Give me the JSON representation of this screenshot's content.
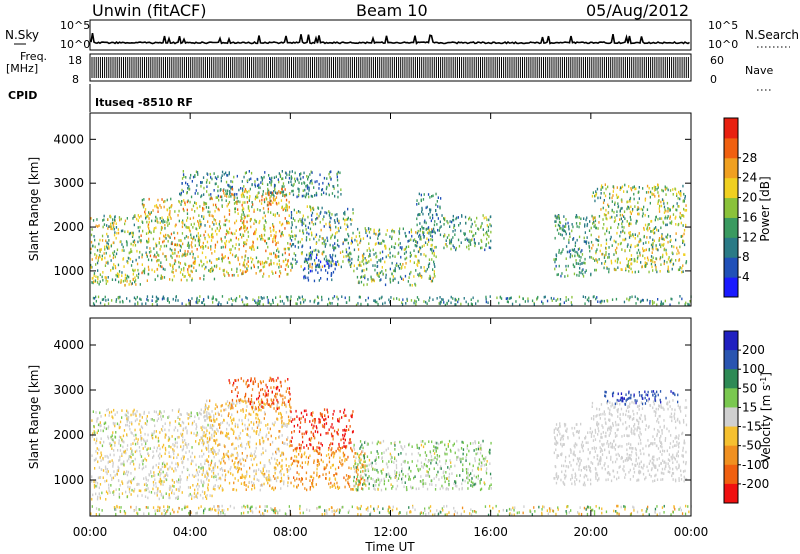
{
  "header": {
    "station": "Unwin (fitACF)",
    "beam": "Beam 10",
    "date": "05/Aug/2012"
  },
  "status_panels": {
    "nsky_label": "N.Sky",
    "nsearch_label": "N.Search",
    "nsky_ticks": [
      "10^5",
      "10^0"
    ],
    "nsearch_ticks": [
      "10^5",
      "10^0"
    ],
    "freq_label_1": "Freq.",
    "freq_label_2": "[MHz]",
    "freq_ticks": [
      "18",
      "8"
    ],
    "nave_label": "Nave",
    "nave_ticks": [
      "60",
      "0"
    ],
    "cpid_label": "CPID",
    "cpid_text": "Ituseq -8510 RF"
  },
  "colors": {
    "power": [
      "#1a1aff",
      "#2050b8",
      "#2a7a86",
      "#3a9a60",
      "#8ac23a",
      "#f0d020",
      "#f0a020",
      "#f06010",
      "#e82010"
    ],
    "velocity": [
      "#2020c0",
      "#2a55b0",
      "#2e8a55",
      "#7ac850",
      "#d0d0d0",
      "#f5c030",
      "#f09020",
      "#f06010",
      "#f01010"
    ]
  },
  "chart_data": [
    {
      "type": "heatmap",
      "quantity": "power",
      "xlabel": "",
      "ylabel": "Slant Range [km]",
      "xlim": [
        0,
        24
      ],
      "ylim": [
        200,
        4600
      ],
      "yticks": [
        "1000",
        "2000",
        "3000",
        "4000"
      ],
      "colorbar_label": "Power [dB]",
      "colorbar_ticks": [
        "4",
        "8",
        "12",
        "16",
        "20",
        "24",
        "28"
      ],
      "colorbar_range": [
        0,
        32
      ],
      "regions": [
        {
          "t": [
            0.0,
            2.0
          ],
          "r": [
            700,
            2300
          ],
          "v": [
            8,
            24
          ]
        },
        {
          "t": [
            2.0,
            5.0
          ],
          "r": [
            800,
            2700
          ],
          "v": [
            10,
            26
          ]
        },
        {
          "t": [
            3.5,
            10.0
          ],
          "r": [
            2700,
            3300
          ],
          "v": [
            4,
            16
          ]
        },
        {
          "t": [
            5.0,
            8.0
          ],
          "r": [
            900,
            2900
          ],
          "v": [
            12,
            28
          ]
        },
        {
          "t": [
            8.0,
            10.5
          ],
          "r": [
            1100,
            2500
          ],
          "v": [
            4,
            22
          ]
        },
        {
          "t": [
            8.5,
            9.8
          ],
          "r": [
            800,
            1400
          ],
          "v": [
            2,
            10
          ]
        },
        {
          "t": [
            10.5,
            13.8
          ],
          "r": [
            700,
            2000
          ],
          "v": [
            6,
            22
          ]
        },
        {
          "t": [
            13.0,
            14.0
          ],
          "r": [
            1800,
            2800
          ],
          "v": [
            6,
            14
          ]
        },
        {
          "t": [
            14.0,
            16.0
          ],
          "r": [
            1500,
            2300
          ],
          "v": [
            6,
            18
          ]
        },
        {
          "t": [
            18.5,
            20.0
          ],
          "r": [
            900,
            2300
          ],
          "v": [
            6,
            16
          ]
        },
        {
          "t": [
            20.0,
            23.8
          ],
          "r": [
            1000,
            3000
          ],
          "v": [
            8,
            24
          ]
        },
        {
          "t": [
            0.0,
            24.0
          ],
          "r": [
            250,
            450
          ],
          "v": [
            6,
            16
          ]
        }
      ]
    },
    {
      "type": "heatmap",
      "quantity": "velocity",
      "xlabel": "Time UT",
      "ylabel": "Slant Range [km]",
      "xlim": [
        0,
        24
      ],
      "ylim": [
        200,
        4600
      ],
      "xticks": [
        "00:00",
        "04:00",
        "08:00",
        "12:00",
        "16:00",
        "20:00",
        "00:00"
      ],
      "yticks": [
        "1000",
        "2000",
        "3000",
        "4000"
      ],
      "colorbar_label": "Velocity [m s^-1]",
      "colorbar_ticks": [
        "200",
        "100",
        "50",
        "15",
        "-15",
        "-50",
        "-100",
        "-200"
      ],
      "regions": [
        {
          "t": [
            0.0,
            5.0
          ],
          "r": [
            600,
            2600
          ],
          "v": [
            -30,
            20
          ]
        },
        {
          "t": [
            4.5,
            8.0
          ],
          "r": [
            800,
            2800
          ],
          "v": [
            -60,
            10
          ]
        },
        {
          "t": [
            5.5,
            8.0
          ],
          "r": [
            2600,
            3300
          ],
          "v": [
            -250,
            -50
          ]
        },
        {
          "t": [
            8.0,
            10.5
          ],
          "r": [
            1700,
            2600
          ],
          "v": [
            -300,
            -80
          ]
        },
        {
          "t": [
            8.0,
            11.0
          ],
          "r": [
            800,
            1700
          ],
          "v": [
            -120,
            -20
          ]
        },
        {
          "t": [
            10.5,
            16.0
          ],
          "r": [
            800,
            1900
          ],
          "v": [
            -20,
            60
          ]
        },
        {
          "t": [
            18.5,
            20.0
          ],
          "r": [
            900,
            2300
          ],
          "v": [
            -15,
            15
          ]
        },
        {
          "t": [
            20.0,
            23.8
          ],
          "r": [
            1000,
            2800
          ],
          "v": [
            -15,
            15
          ]
        },
        {
          "t": [
            20.5,
            23.5
          ],
          "r": [
            2700,
            3000
          ],
          "v": [
            100,
            250
          ]
        },
        {
          "t": [
            0.0,
            24.0
          ],
          "r": [
            250,
            450
          ],
          "v": [
            -60,
            60
          ]
        }
      ]
    }
  ]
}
